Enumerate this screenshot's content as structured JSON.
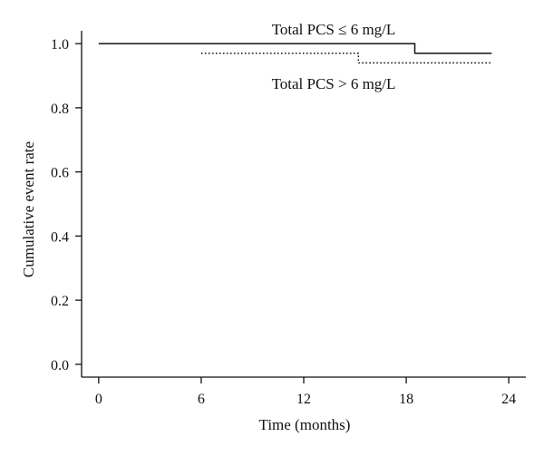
{
  "chart_data": {
    "type": "line",
    "title": "",
    "xlabel": "Time (months)",
    "ylabel": "Cumulative event rate",
    "xlim": [
      -1,
      25
    ],
    "ylim": [
      -0.04,
      1.04
    ],
    "x_ticks": [
      0,
      6,
      12,
      18,
      24
    ],
    "y_ticks": [
      0.0,
      0.2,
      0.4,
      0.6,
      0.8,
      1.0
    ],
    "x_tick_labels": [
      "0",
      "6",
      "12",
      "18",
      "24"
    ],
    "y_tick_labels": [
      "0.0",
      "0.2",
      "0.4",
      "0.6",
      "0.8",
      "1.0"
    ],
    "grid": false,
    "legend": "none",
    "step": true,
    "series": [
      {
        "name": "Total PCS ≤ 6 mg/L",
        "style": "solid",
        "color": "#111111",
        "x": [
          0,
          18.5,
          23
        ],
        "y": [
          1.0,
          0.97,
          0.97
        ]
      },
      {
        "name": "Total PCS > 6 mg/L",
        "style": "dotted",
        "color": "#111111",
        "x": [
          6,
          15.2,
          23
        ],
        "y": [
          0.97,
          0.94,
          0.94
        ]
      }
    ],
    "annotations": [
      {
        "text": "Total PCS ≤ 6 mg/L",
        "series": 0,
        "position": "above"
      },
      {
        "text": "Total PCS > 6 mg/L",
        "series": 1,
        "position": "below"
      }
    ]
  }
}
